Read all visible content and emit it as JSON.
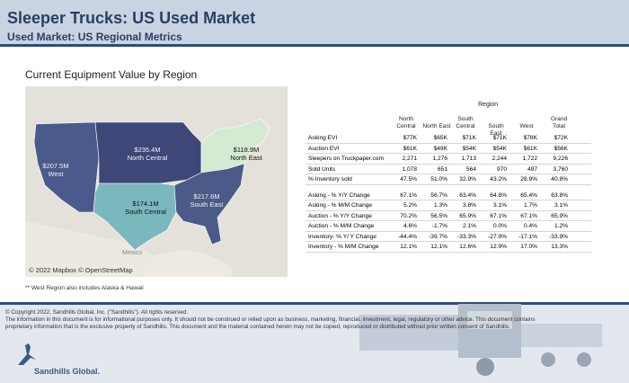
{
  "header": {
    "title": "Sleeper Trucks:  US Used Market",
    "subtitle": "Used Market: US Regional Metrics"
  },
  "section_title": "Current Equipment Value by Region",
  "map": {
    "regions": [
      {
        "name": "West",
        "value": "$207.5M",
        "color": "#4a5a8c"
      },
      {
        "name": "North Central",
        "value": "$235.4M",
        "color": "#3e4778"
      },
      {
        "name": "North East",
        "value": "$118.9M",
        "color": "#d4ead3"
      },
      {
        "name": "South Central",
        "value": "$174.1M",
        "color": "#7ab8bd"
      },
      {
        "name": "South East",
        "value": "$217.6M",
        "color": "#4b5a88"
      }
    ],
    "label_mexico": "Mexico",
    "credit": "© 2022 Mapbox © OpenStreetMap"
  },
  "footnote": "** West Region also includes Alaska & Hawaii",
  "table": {
    "region_header": "Region",
    "columns": [
      [
        "North",
        "Central"
      ],
      [
        "North East"
      ],
      [
        "South",
        "Central"
      ],
      [
        "South East"
      ],
      [
        "West"
      ],
      [
        "Grand",
        "Total"
      ]
    ],
    "rows_top": [
      {
        "label": "Asking EVI",
        "values": [
          "$77K",
          "$65K",
          "$71K",
          "$71K",
          "$78K",
          "$72K"
        ]
      },
      {
        "label": "Auction EVI",
        "values": [
          "$61K",
          "$49K",
          "$54K",
          "$54K",
          "$61K",
          "$56K"
        ]
      },
      {
        "label": "Sleepers on Truckpaper.com",
        "values": [
          "2,271",
          "1,276",
          "1,713",
          "2,244",
          "1,722",
          "9,226"
        ]
      },
      {
        "label": "Sold Units",
        "values": [
          "1,078",
          "651",
          "564",
          "970",
          "497",
          "3,760"
        ]
      },
      {
        "label": "% Inventory sold",
        "values": [
          "47.5%",
          "51.0%",
          "32.9%",
          "43.2%",
          "28.9%",
          "40.8%"
        ]
      }
    ],
    "rows_bottom": [
      {
        "label": "Asking - % Y/Y Change",
        "values": [
          "67.1%",
          "56.7%",
          "63.4%",
          "64.8%",
          "65.4%",
          "63.8%"
        ]
      },
      {
        "label": "Asking - % M/M Change",
        "values": [
          "5.2%",
          "1.3%",
          "3.8%",
          "3.1%",
          "1.7%",
          "3.1%"
        ]
      },
      {
        "label": "Auction - % Y/Y Change",
        "values": [
          "70.2%",
          "56.5%",
          "65.9%",
          "67.1%",
          "67.1%",
          "65.9%"
        ]
      },
      {
        "label": "Auction - % M/M Change",
        "values": [
          "4.6%",
          "-1.7%",
          "2.1%",
          "0.0%",
          "0.4%",
          "1.2%"
        ]
      },
      {
        "label": "Inventory- % Y/ Y Change",
        "values": [
          "-44.4%",
          "-39.7%",
          "-33.3%",
          "-27.9%",
          "-17.1%",
          "-33.9%"
        ]
      },
      {
        "label": "Inventory - % M/M Change",
        "values": [
          "12.1%",
          "12.1%",
          "12.6%",
          "12.9%",
          "17.0%",
          "13.3%"
        ]
      }
    ]
  },
  "footer": {
    "copyright": "© Copyright 2022, Sandhills Global, Inc. (\"Sandhills\"). All rights reserved.",
    "disclaimer": "The information in this document is for informational purposes only.  It should not be construed or relied upon as business, marketing, financial, investment, legal, regulatory or other advice. This document contains proprietary information that is the exclusive property of Sandhills. This document and the material contained herein may not be copied, reproduced or distributed without prior written consent of Sandhills.",
    "logo_text": "Sandhills Global."
  }
}
